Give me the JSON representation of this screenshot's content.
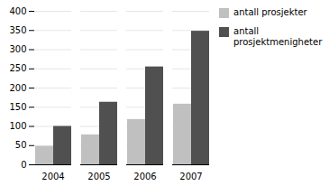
{
  "chart_data": {
    "type": "bar",
    "categories": [
      "2004",
      "2005",
      "2006",
      "2007"
    ],
    "series": [
      {
        "name": "antall prosjekter",
        "color": "#c0c0c0",
        "values": [
          48,
          78,
          118,
          158
        ]
      },
      {
        "name": "antall\nprosjektmenigheter",
        "color": "#505050",
        "values": [
          100,
          163,
          255,
          348
        ]
      }
    ],
    "ylim": [
      0,
      400
    ],
    "yticks": [
      0,
      50,
      100,
      150,
      200,
      250,
      300,
      350,
      400
    ],
    "grid": true,
    "legend": "right"
  }
}
